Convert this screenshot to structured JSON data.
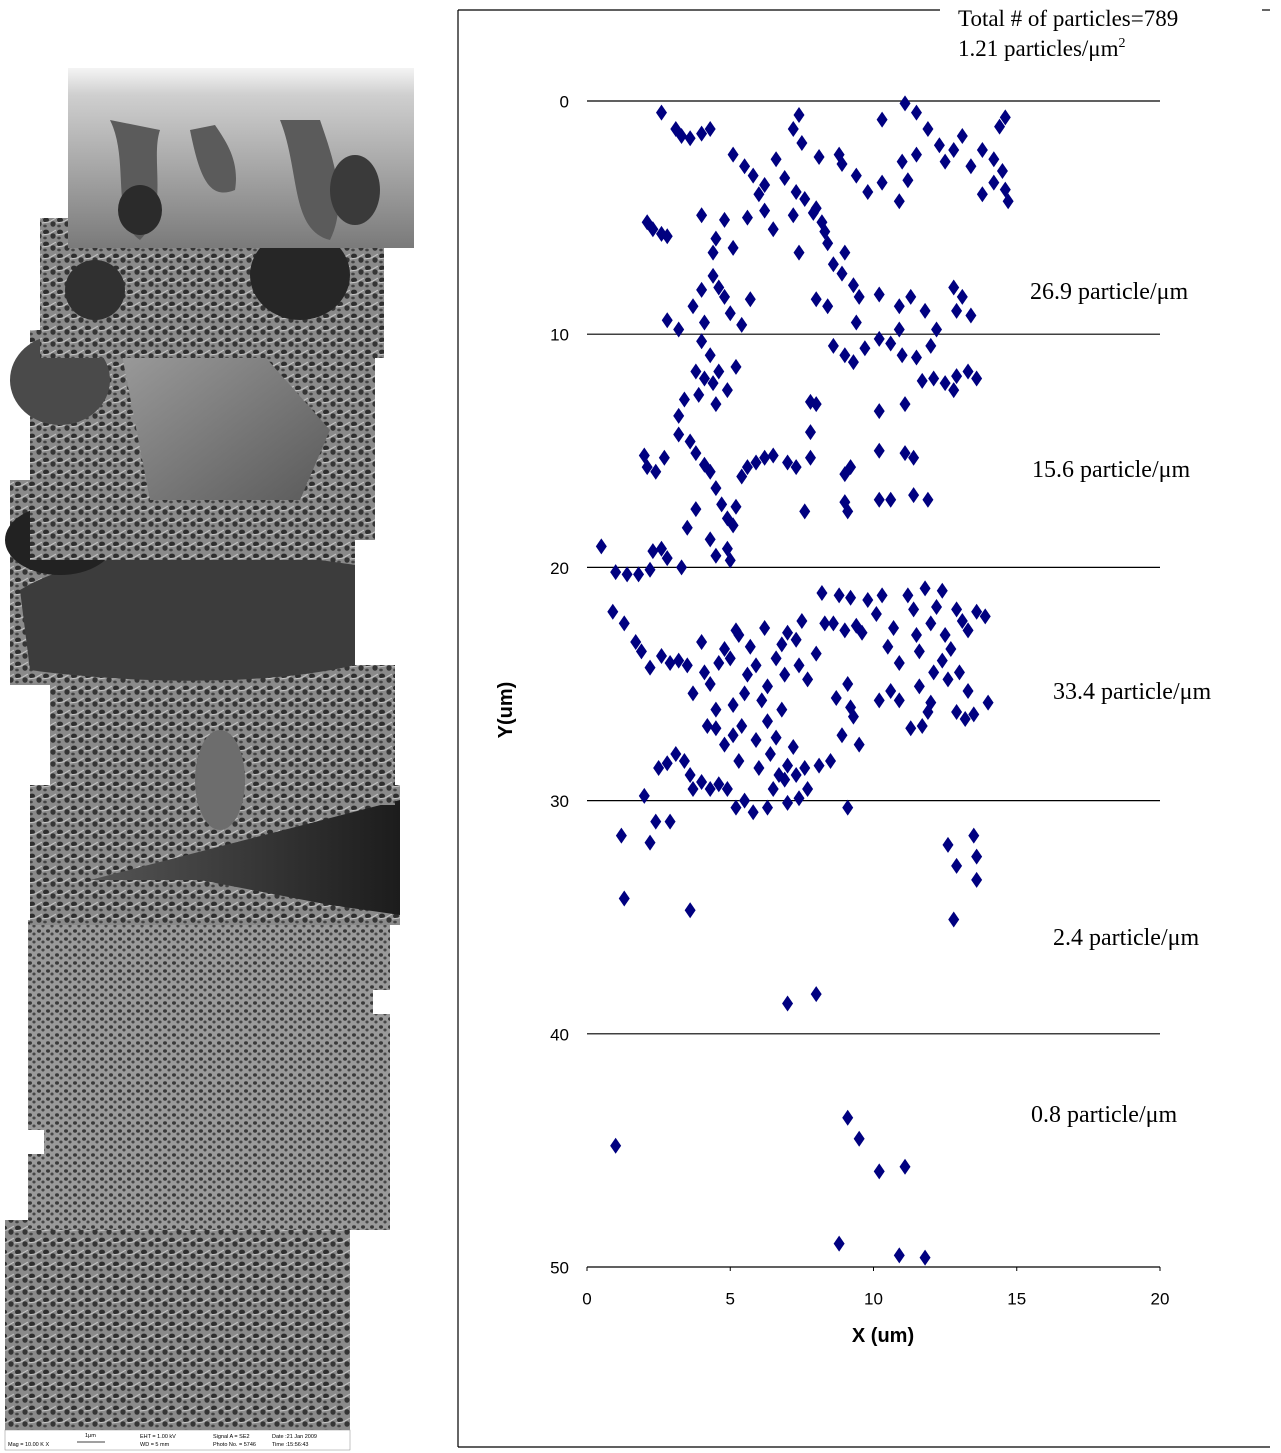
{
  "micrograph": {
    "info": [
      "Mag = 10.00 K X",
      "1μm",
      "EHT = 1.00 kV",
      "WD = 5 mm",
      "Signal A = SE2",
      "Photo No. = 5746",
      "Date :21 Jan 2009",
      "Time :15:56:43"
    ]
  },
  "chart_data": {
    "type": "scatter",
    "annotations": [
      "Total # of particles=789"
    ],
    "density": {
      "text": "1.21 particles/μm",
      "superscript": "2"
    },
    "region_labels": [
      "26.9 particle/μm",
      "15.6 particle/μm",
      "33.4 particle/μm",
      "2.4 particle/μm",
      "0.8 particle/μm"
    ],
    "x_label": "X (um)",
    "y_label": "Y(um)",
    "xlim": [
      0,
      20
    ],
    "xticks": [
      0,
      5,
      10,
      15,
      20
    ],
    "ylim": [
      0,
      50
    ],
    "yticks": [
      0,
      10,
      20,
      30,
      40,
      50
    ],
    "y_inverted": true,
    "grid": true,
    "color": "#000080",
    "marker": "diamond",
    "x": [
      2.6,
      3.1,
      3.3,
      3.6,
      4.0,
      4.3,
      5.1,
      5.5,
      5.8,
      6.2,
      6.0,
      6.6,
      6.9,
      7.2,
      7.4,
      7.5,
      7.3,
      7.6,
      7.9,
      8.1,
      8.3,
      8.8,
      8.9,
      9.4,
      9.8,
      10.3,
      10.3,
      11.1,
      11.5,
      11.9,
      11.5,
      11.0,
      10.9,
      11.2,
      12.3,
      12.5,
      12.8,
      13.1,
      13.4,
      13.8,
      14.2,
      14.5,
      14.6,
      14.7,
      14.4,
      14.6,
      13.8,
      14.2,
      2.1,
      2.3,
      2.6,
      2.8,
      4.0,
      4.8,
      4.5,
      4.4,
      5.1,
      5.6,
      6.2,
      6.5,
      7.2,
      8.0,
      8.2,
      8.4,
      7.4,
      8.6,
      8.9,
      9.0,
      9.3,
      9.5,
      8.0,
      8.4,
      4.0,
      4.4,
      4.6,
      4.8,
      5.0,
      5.4,
      5.7,
      3.7,
      4.1,
      2.8,
      3.2,
      9.4,
      10.2,
      10.9,
      11.3,
      11.8,
      12.2,
      12.8,
      12.9,
      13.1,
      13.4,
      4.0,
      4.3,
      8.6,
      9.0,
      9.3,
      9.7,
      10.2,
      10.6,
      10.9,
      11.0,
      11.5,
      12.0,
      3.8,
      4.1,
      4.4,
      4.6,
      4.9,
      5.2,
      4.5,
      3.9,
      3.4,
      3.2,
      12.1,
      12.5,
      12.9,
      13.3,
      13.6,
      12.8,
      11.7,
      11.1,
      10.2,
      7.8,
      8.0,
      7.8,
      3.2,
      3.6,
      3.8,
      4.1,
      4.3,
      2.0,
      2.1,
      2.4,
      2.7,
      5.4,
      5.6,
      5.9,
      6.2,
      6.5,
      7.0,
      7.3,
      7.8,
      9.0,
      9.2,
      10.2,
      11.1,
      11.4,
      4.5,
      4.7,
      4.9,
      5.2,
      5.1,
      3.8,
      9.0,
      9.1,
      10.2,
      10.6,
      11.4,
      11.9,
      7.6,
      4.3,
      4.5,
      4.9,
      5.0,
      3.5,
      0.5,
      1.0,
      1.4,
      1.8,
      2.2,
      2.3,
      2.6,
      2.8,
      3.3,
      0.9,
      1.3,
      1.7,
      1.9,
      2.2,
      2.6,
      2.9,
      3.2,
      3.5,
      3.7,
      4.0,
      4.1,
      4.3,
      4.6,
      5.0,
      5.3,
      5.7,
      5.9,
      6.2,
      6.3,
      6.6,
      6.9,
      7.0,
      7.3,
      7.5,
      7.4,
      7.7,
      8.0,
      8.3,
      8.2,
      8.6,
      8.8,
      9.0,
      9.2,
      9.4,
      9.6,
      9.8,
      10.1,
      10.3,
      10.5,
      10.7,
      10.9,
      11.2,
      11.4,
      11.5,
      11.6,
      11.8,
      12.0,
      12.2,
      12.4,
      12.5,
      12.7,
      12.9,
      13.1,
      13.3,
      13.6,
      13.9,
      12.4,
      12.6,
      13.0,
      13.3,
      13.5,
      13.2,
      14.0,
      12.9,
      12.0,
      11.7,
      11.3,
      10.9,
      10.6,
      10.2,
      11.6,
      12.1,
      11.9,
      9.1,
      9.2,
      8.7,
      9.3,
      8.9,
      9.5,
      8.5,
      7.6,
      7.7,
      7.3,
      7.0,
      6.9,
      7.0,
      7.4,
      6.5,
      6.3,
      5.8,
      5.5,
      5.2,
      4.9,
      4.6,
      4.3,
      4.0,
      3.7,
      3.6,
      3.4,
      3.1,
      2.8,
      2.5,
      4.5,
      4.8,
      5.1,
      5.4,
      5.9,
      6.3,
      6.6,
      6.8,
      6.1,
      5.5,
      5.1,
      4.5,
      4.2,
      5.3,
      6.0,
      6.4,
      6.7,
      7.2,
      8.1,
      5.2,
      4.8,
      5.6,
      6.8,
      2.0,
      1.2,
      2.4,
      2.9,
      2.2,
      9.1,
      12.6,
      12.9,
      13.5,
      13.6,
      13.6,
      12.8,
      1.3,
      3.6,
      7.0,
      8.0,
      1.0,
      9.1,
      9.5,
      10.2,
      11.1,
      8.8,
      10.9,
      11.8
    ],
    "values": [
      0.5,
      1.2,
      1.5,
      1.6,
      1.4,
      1.2,
      2.3,
      2.8,
      3.2,
      3.6,
      4.0,
      2.5,
      3.3,
      1.2,
      0.6,
      1.8,
      3.9,
      4.2,
      4.8,
      2.4,
      5.6,
      2.3,
      2.7,
      3.2,
      3.9,
      3.5,
      0.8,
      0.1,
      0.5,
      1.2,
      2.3,
      2.6,
      4.3,
      3.4,
      1.9,
      2.6,
      2.1,
      1.5,
      2.8,
      2.1,
      2.5,
      3.0,
      3.8,
      4.3,
      1.1,
      0.7,
      4.0,
      3.5,
      5.2,
      5.5,
      5.7,
      5.8,
      4.9,
      5.1,
      5.9,
      6.5,
      6.3,
      5.0,
      4.7,
      5.5,
      4.9,
      4.6,
      5.2,
      6.1,
      6.5,
      7.0,
      7.4,
      6.5,
      7.9,
      8.4,
      8.5,
      8.8,
      8.1,
      7.5,
      8.0,
      8.4,
      9.1,
      9.6,
      8.5,
      8.8,
      9.5,
      9.4,
      9.8,
      9.5,
      8.3,
      8.8,
      8.4,
      9.0,
      9.8,
      8.0,
      9.0,
      8.4,
      9.2,
      10.3,
      10.9,
      10.5,
      10.9,
      11.2,
      10.6,
      10.2,
      10.4,
      9.8,
      10.9,
      11.0,
      10.5,
      11.6,
      11.9,
      12.1,
      11.6,
      12.4,
      11.4,
      13.0,
      12.6,
      12.8,
      13.5,
      11.9,
      12.1,
      11.8,
      11.6,
      11.9,
      12.4,
      12.0,
      13.0,
      13.3,
      12.9,
      13.0,
      14.2,
      14.3,
      14.6,
      15.1,
      15.6,
      15.9,
      15.2,
      15.7,
      15.9,
      15.3,
      16.1,
      15.7,
      15.5,
      15.3,
      15.2,
      15.5,
      15.7,
      15.3,
      16.0,
      15.7,
      15.0,
      15.1,
      15.3,
      16.6,
      17.3,
      17.9,
      17.4,
      18.2,
      17.5,
      17.2,
      17.6,
      17.1,
      17.1,
      16.9,
      17.1,
      17.6,
      18.8,
      19.5,
      19.2,
      19.7,
      18.3,
      19.1,
      20.2,
      20.3,
      20.3,
      20.1,
      19.3,
      19.2,
      19.6,
      20.0,
      21.9,
      22.4,
      23.2,
      23.6,
      24.3,
      23.8,
      24.1,
      24.0,
      24.2,
      25.4,
      23.2,
      24.5,
      25.0,
      24.1,
      23.9,
      22.9,
      23.4,
      24.2,
      22.6,
      25.1,
      23.9,
      24.6,
      22.8,
      23.1,
      22.3,
      24.2,
      24.8,
      23.7,
      22.4,
      21.1,
      22.4,
      21.2,
      22.7,
      21.3,
      22.5,
      22.8,
      21.4,
      22.0,
      21.2,
      23.4,
      22.6,
      24.1,
      21.2,
      21.8,
      22.9,
      23.6,
      20.9,
      22.4,
      21.7,
      21.0,
      22.9,
      23.5,
      21.8,
      22.3,
      22.7,
      21.9,
      22.1,
      24.0,
      24.8,
      24.5,
      25.3,
      26.3,
      26.5,
      25.8,
      26.2,
      25.8,
      26.8,
      26.9,
      25.7,
      25.3,
      25.7,
      25.1,
      24.5,
      26.2,
      25.0,
      26.0,
      25.6,
      26.4,
      27.2,
      27.6,
      28.3,
      28.6,
      29.5,
      28.9,
      28.5,
      29.1,
      30.1,
      29.9,
      29.5,
      30.3,
      30.5,
      30.0,
      30.3,
      29.5,
      29.3,
      29.5,
      29.2,
      29.5,
      28.9,
      28.3,
      28.0,
      28.4,
      28.6,
      26.9,
      27.6,
      27.2,
      26.8,
      27.4,
      26.6,
      27.3,
      26.1,
      25.7,
      25.4,
      25.9,
      26.1,
      26.8,
      28.3,
      28.6,
      28.0,
      28.9,
      27.7,
      28.5,
      22.7,
      23.5,
      24.6,
      23.3,
      29.8,
      31.5,
      30.9,
      30.9,
      31.8,
      30.3,
      31.9,
      32.8,
      31.5,
      32.4,
      33.4,
      35.1,
      34.2,
      34.7,
      38.7,
      38.3,
      44.8,
      43.6,
      44.5,
      45.9,
      45.7,
      49.0,
      49.5,
      49.6
    ]
  }
}
